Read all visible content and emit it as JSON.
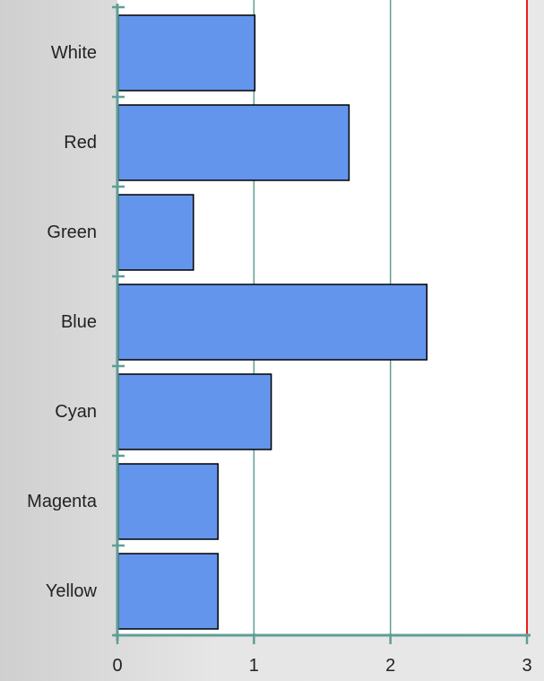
{
  "chart_data": {
    "type": "bar",
    "orientation": "horizontal",
    "categories": [
      "White",
      "Red",
      "Green",
      "Blue",
      "Cyan",
      "Magenta",
      "Yellow"
    ],
    "values": [
      1.0,
      1.69,
      0.55,
      2.26,
      1.12,
      0.73,
      0.73
    ],
    "xlim": [
      0,
      3
    ],
    "xticks": [
      "0",
      "1",
      "2",
      "3"
    ],
    "title": "",
    "xlabel": "",
    "ylabel": "",
    "grid": "vertical",
    "legend": "none",
    "colors": {
      "bar_fill": "#6495ED",
      "bar_stroke": "#000000",
      "axis": "#5f9e96",
      "gridline": "#5f9e96",
      "plot_background": "#ffffff",
      "limit_line": "#e81c1c"
    }
  }
}
